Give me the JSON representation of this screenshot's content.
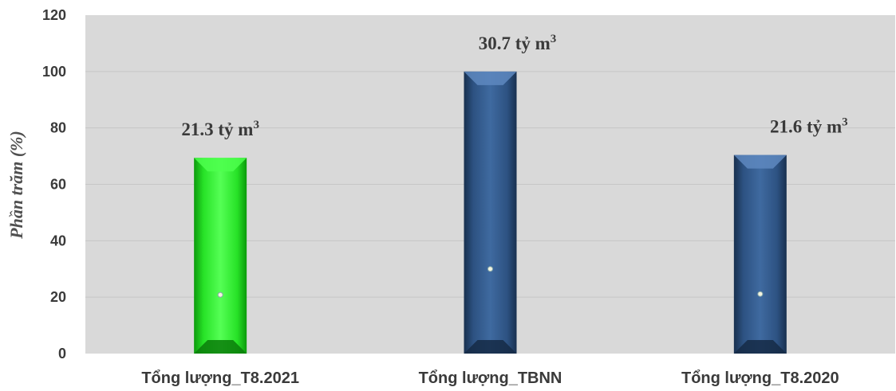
{
  "chart_data": {
    "type": "bar",
    "categories": [
      "Tổng lượng_T8.2021",
      "Tổng lượng_TBNN",
      "Tổng lượng_T8.2020"
    ],
    "values": [
      69.4,
      100,
      70.4
    ],
    "data_labels": [
      {
        "text": "21.3 tỷ m",
        "sup": "3"
      },
      {
        "text": "30.7 tỷ m",
        "sup": "3"
      },
      {
        "text": "21.6 tỷ m",
        "sup": "3"
      }
    ],
    "ylabel": "Phần trăm (%)",
    "xlabel": "",
    "ylim": [
      0,
      120
    ],
    "yticks": [
      0,
      20,
      40,
      60,
      80,
      100,
      120
    ],
    "grid": true,
    "colors": {
      "plot_background": "#d9d9d9",
      "gridline": "#c6c6c6",
      "bars": [
        "#22e822",
        "#2f5584",
        "#2f5584"
      ]
    }
  }
}
